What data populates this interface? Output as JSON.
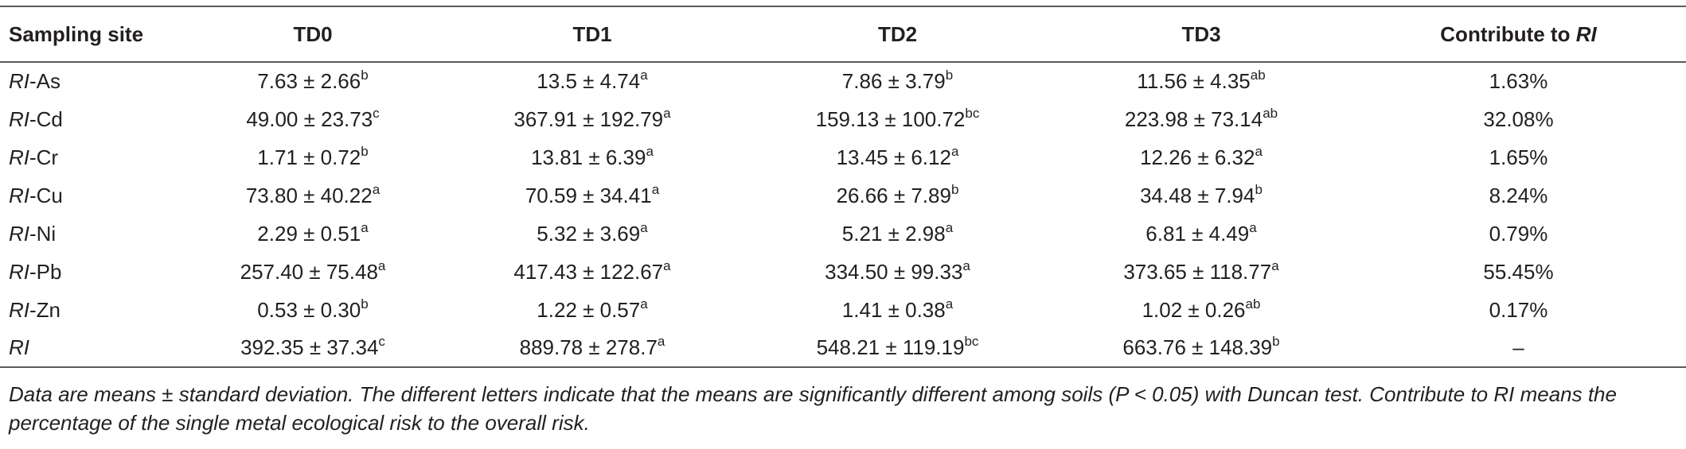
{
  "table": {
    "headers": {
      "site": "Sampling site",
      "td0": "TD0",
      "td1": "TD1",
      "td2": "TD2",
      "td3": "TD3",
      "contribute_prefix": "Contribute to ",
      "contribute_italic": "RI"
    },
    "rows": [
      {
        "site_italic": "RI",
        "site_rest": "-As",
        "td0": "7.63 ± 2.66",
        "td0_sup": "b",
        "td1": "13.5 ± 4.74",
        "td1_sup": "a",
        "td2": "7.86 ± 3.79",
        "td2_sup": "b",
        "td3": "11.56 ± 4.35",
        "td3_sup": "ab",
        "contrib": "1.63%"
      },
      {
        "site_italic": "RI",
        "site_rest": "-Cd",
        "td0": "49.00 ± 23.73",
        "td0_sup": "c",
        "td1": "367.91 ± 192.79",
        "td1_sup": "a",
        "td2": "159.13 ± 100.72",
        "td2_sup": "bc",
        "td3": "223.98 ± 73.14",
        "td3_sup": "ab",
        "contrib": "32.08%"
      },
      {
        "site_italic": "RI",
        "site_rest": "-Cr",
        "td0": "1.71 ± 0.72",
        "td0_sup": "b",
        "td1": "13.81 ± 6.39",
        "td1_sup": "a",
        "td2": "13.45 ± 6.12",
        "td2_sup": "a",
        "td3": "12.26 ± 6.32",
        "td3_sup": "a",
        "contrib": "1.65%"
      },
      {
        "site_italic": "RI",
        "site_rest": "-Cu",
        "td0": "73.80 ± 40.22",
        "td0_sup": "a",
        "td1": "70.59 ± 34.41",
        "td1_sup": "a",
        "td2": "26.66 ± 7.89",
        "td2_sup": "b",
        "td3": "34.48 ± 7.94",
        "td3_sup": "b",
        "contrib": "8.24%"
      },
      {
        "site_italic": "RI",
        "site_rest": "-Ni",
        "td0": "2.29 ± 0.51",
        "td0_sup": "a",
        "td1": "5.32 ± 3.69",
        "td1_sup": "a",
        "td2": "5.21 ± 2.98",
        "td2_sup": "a",
        "td3": "6.81 ± 4.49",
        "td3_sup": "a",
        "contrib": "0.79%"
      },
      {
        "site_italic": "RI",
        "site_rest": "-Pb",
        "td0": "257.40 ± 75.48",
        "td0_sup": "a",
        "td1": "417.43 ± 122.67",
        "td1_sup": "a",
        "td2": "334.50 ± 99.33",
        "td2_sup": "a",
        "td3": "373.65 ± 118.77",
        "td3_sup": "a",
        "contrib": "55.45%"
      },
      {
        "site_italic": "RI",
        "site_rest": "-Zn",
        "td0": "0.53 ± 0.30",
        "td0_sup": "b",
        "td1": "1.22 ± 0.57",
        "td1_sup": "a",
        "td2": "1.41 ± 0.38",
        "td2_sup": "a",
        "td3": "1.02 ± 0.26",
        "td3_sup": "ab",
        "contrib": "0.17%"
      },
      {
        "site_italic": "RI",
        "site_rest": "",
        "td0": "392.35 ± 37.34",
        "td0_sup": "c",
        "td1": "889.78 ± 278.7",
        "td1_sup": "a",
        "td2": "548.21 ± 119.19",
        "td2_sup": "bc",
        "td3": "663.76 ± 148.39",
        "td3_sup": "b",
        "contrib": "–"
      }
    ]
  },
  "footnote": "Data are means ± standard deviation. The different letters indicate that the means are significantly different among soils (P < 0.05) with Duncan test. Contribute to RI means the percentage of the single metal ecological risk to the overall risk.",
  "colors": {
    "text": "#231f20",
    "rule": "#5a5a5a"
  }
}
